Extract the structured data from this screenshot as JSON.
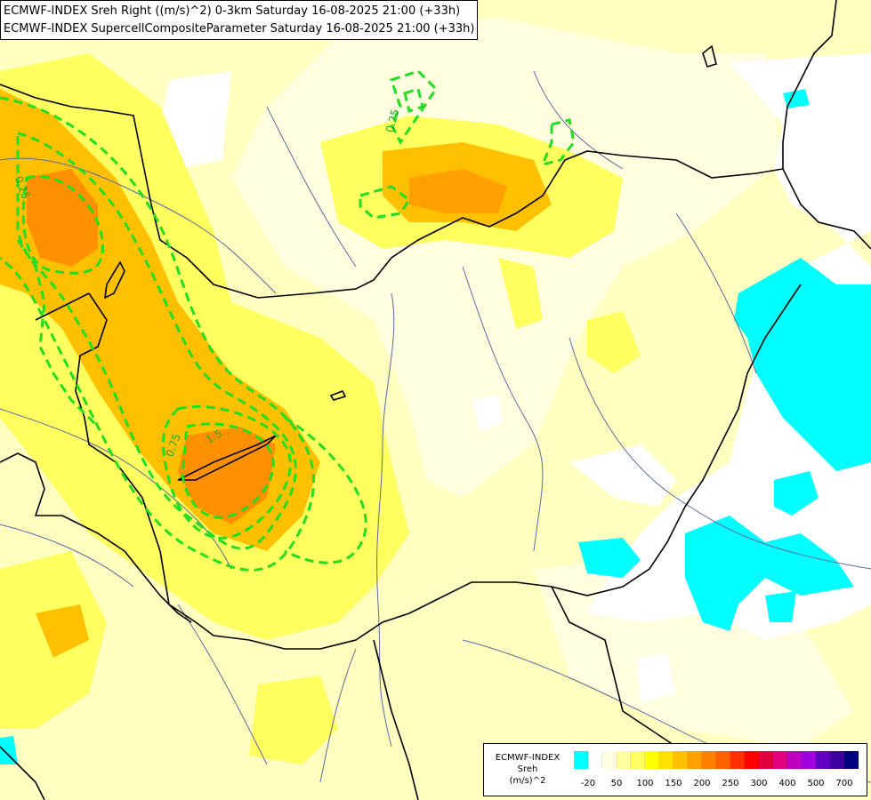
{
  "title": {
    "line1": "ECMWF-INDEX Sreh Right ((m/s)^2) 0-3km Saturday 16-08-2025 21:00 (+33h)",
    "line2": "ECMWF-INDEX SupercellCompositeParameter Saturday 16-08-2025 21:00 (+33h)"
  },
  "legend": {
    "line1": "ECMWF-INDEX",
    "line2": "Sreh",
    "line3": "(m/s)^2",
    "colors": [
      "#00ffff",
      "#ffffff",
      "#ffffe0",
      "#ffffa0",
      "#ffff60",
      "#ffff00",
      "#ffe000",
      "#ffc000",
      "#ffa000",
      "#ff8000",
      "#ff6000",
      "#ff3000",
      "#ff0000",
      "#e00040",
      "#e00080",
      "#c000c0",
      "#a000e0",
      "#6000c0",
      "#4000a0",
      "#000080"
    ],
    "ticks": [
      {
        "label": "-20",
        "pos": 1
      },
      {
        "label": "50",
        "pos": 3
      },
      {
        "label": "100",
        "pos": 5
      },
      {
        "label": "150",
        "pos": 7
      },
      {
        "label": "200",
        "pos": 9
      },
      {
        "label": "250",
        "pos": 11
      },
      {
        "label": "300",
        "pos": 13
      },
      {
        "label": "400",
        "pos": 15
      },
      {
        "label": "500",
        "pos": 17
      },
      {
        "label": "700",
        "pos": 19
      }
    ]
  },
  "contour_labels": [
    "0.25",
    "0.25",
    "0.75",
    "1.5"
  ],
  "colors": {
    "background": "#ffffc0",
    "cyan": "#00ffff",
    "white": "#ffffff",
    "yellow": "#ffff60",
    "orange": "#ffc000",
    "deep_orange": "#ff9000",
    "contour": "#22dd22",
    "border": "#000000",
    "river": "#5a6aa0"
  }
}
